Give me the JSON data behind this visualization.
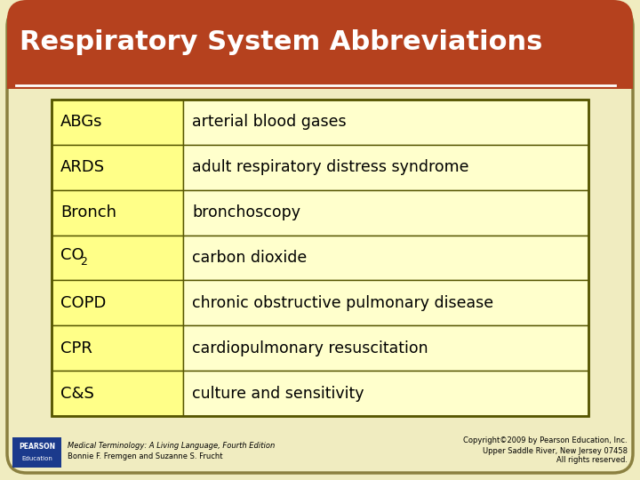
{
  "title": "Respiratory System Abbreviations",
  "title_color": "#FFFFFF",
  "title_bg_color": "#B5411E",
  "page_bg_color": "#F0ECC0",
  "outer_border_color": "#8B8040",
  "abbrev_col_bg": "#FFFF88",
  "definition_col_bg": "#FFFFCC",
  "cell_border_color": "#555500",
  "rows": [
    {
      "abbrev": "ABGs",
      "definition": "arterial blood gases",
      "has_sub": false
    },
    {
      "abbrev": "ARDS",
      "definition": "adult respiratory distress syndrome",
      "has_sub": false
    },
    {
      "abbrev": "Bronch",
      "definition": "bronchoscopy",
      "has_sub": false
    },
    {
      "abbrev": "CO",
      "definition": "carbon dioxide",
      "has_sub": true,
      "sub": "2"
    },
    {
      "abbrev": "COPD",
      "definition": "chronic obstructive pulmonary disease",
      "has_sub": false
    },
    {
      "abbrev": "CPR",
      "definition": "cardiopulmonary resuscitation",
      "has_sub": false
    },
    {
      "abbrev": "C&S",
      "definition": "culture and sensitivity",
      "has_sub": false
    }
  ],
  "footer_left_line1": "Medical Terminology: A Living Language, Fourth Edition",
  "footer_left_line2": "Bonnie F. Fremgen and Suzanne S. Frucht",
  "footer_right_line1": "Copyright©2009 by Pearson Education, Inc.",
  "footer_right_line2": "Upper Saddle River, New Jersey 07458",
  "footer_right_line3": "All rights reserved.",
  "pearson_box_color": "#1B3A8C",
  "white_line_color": "#FFFFFF"
}
